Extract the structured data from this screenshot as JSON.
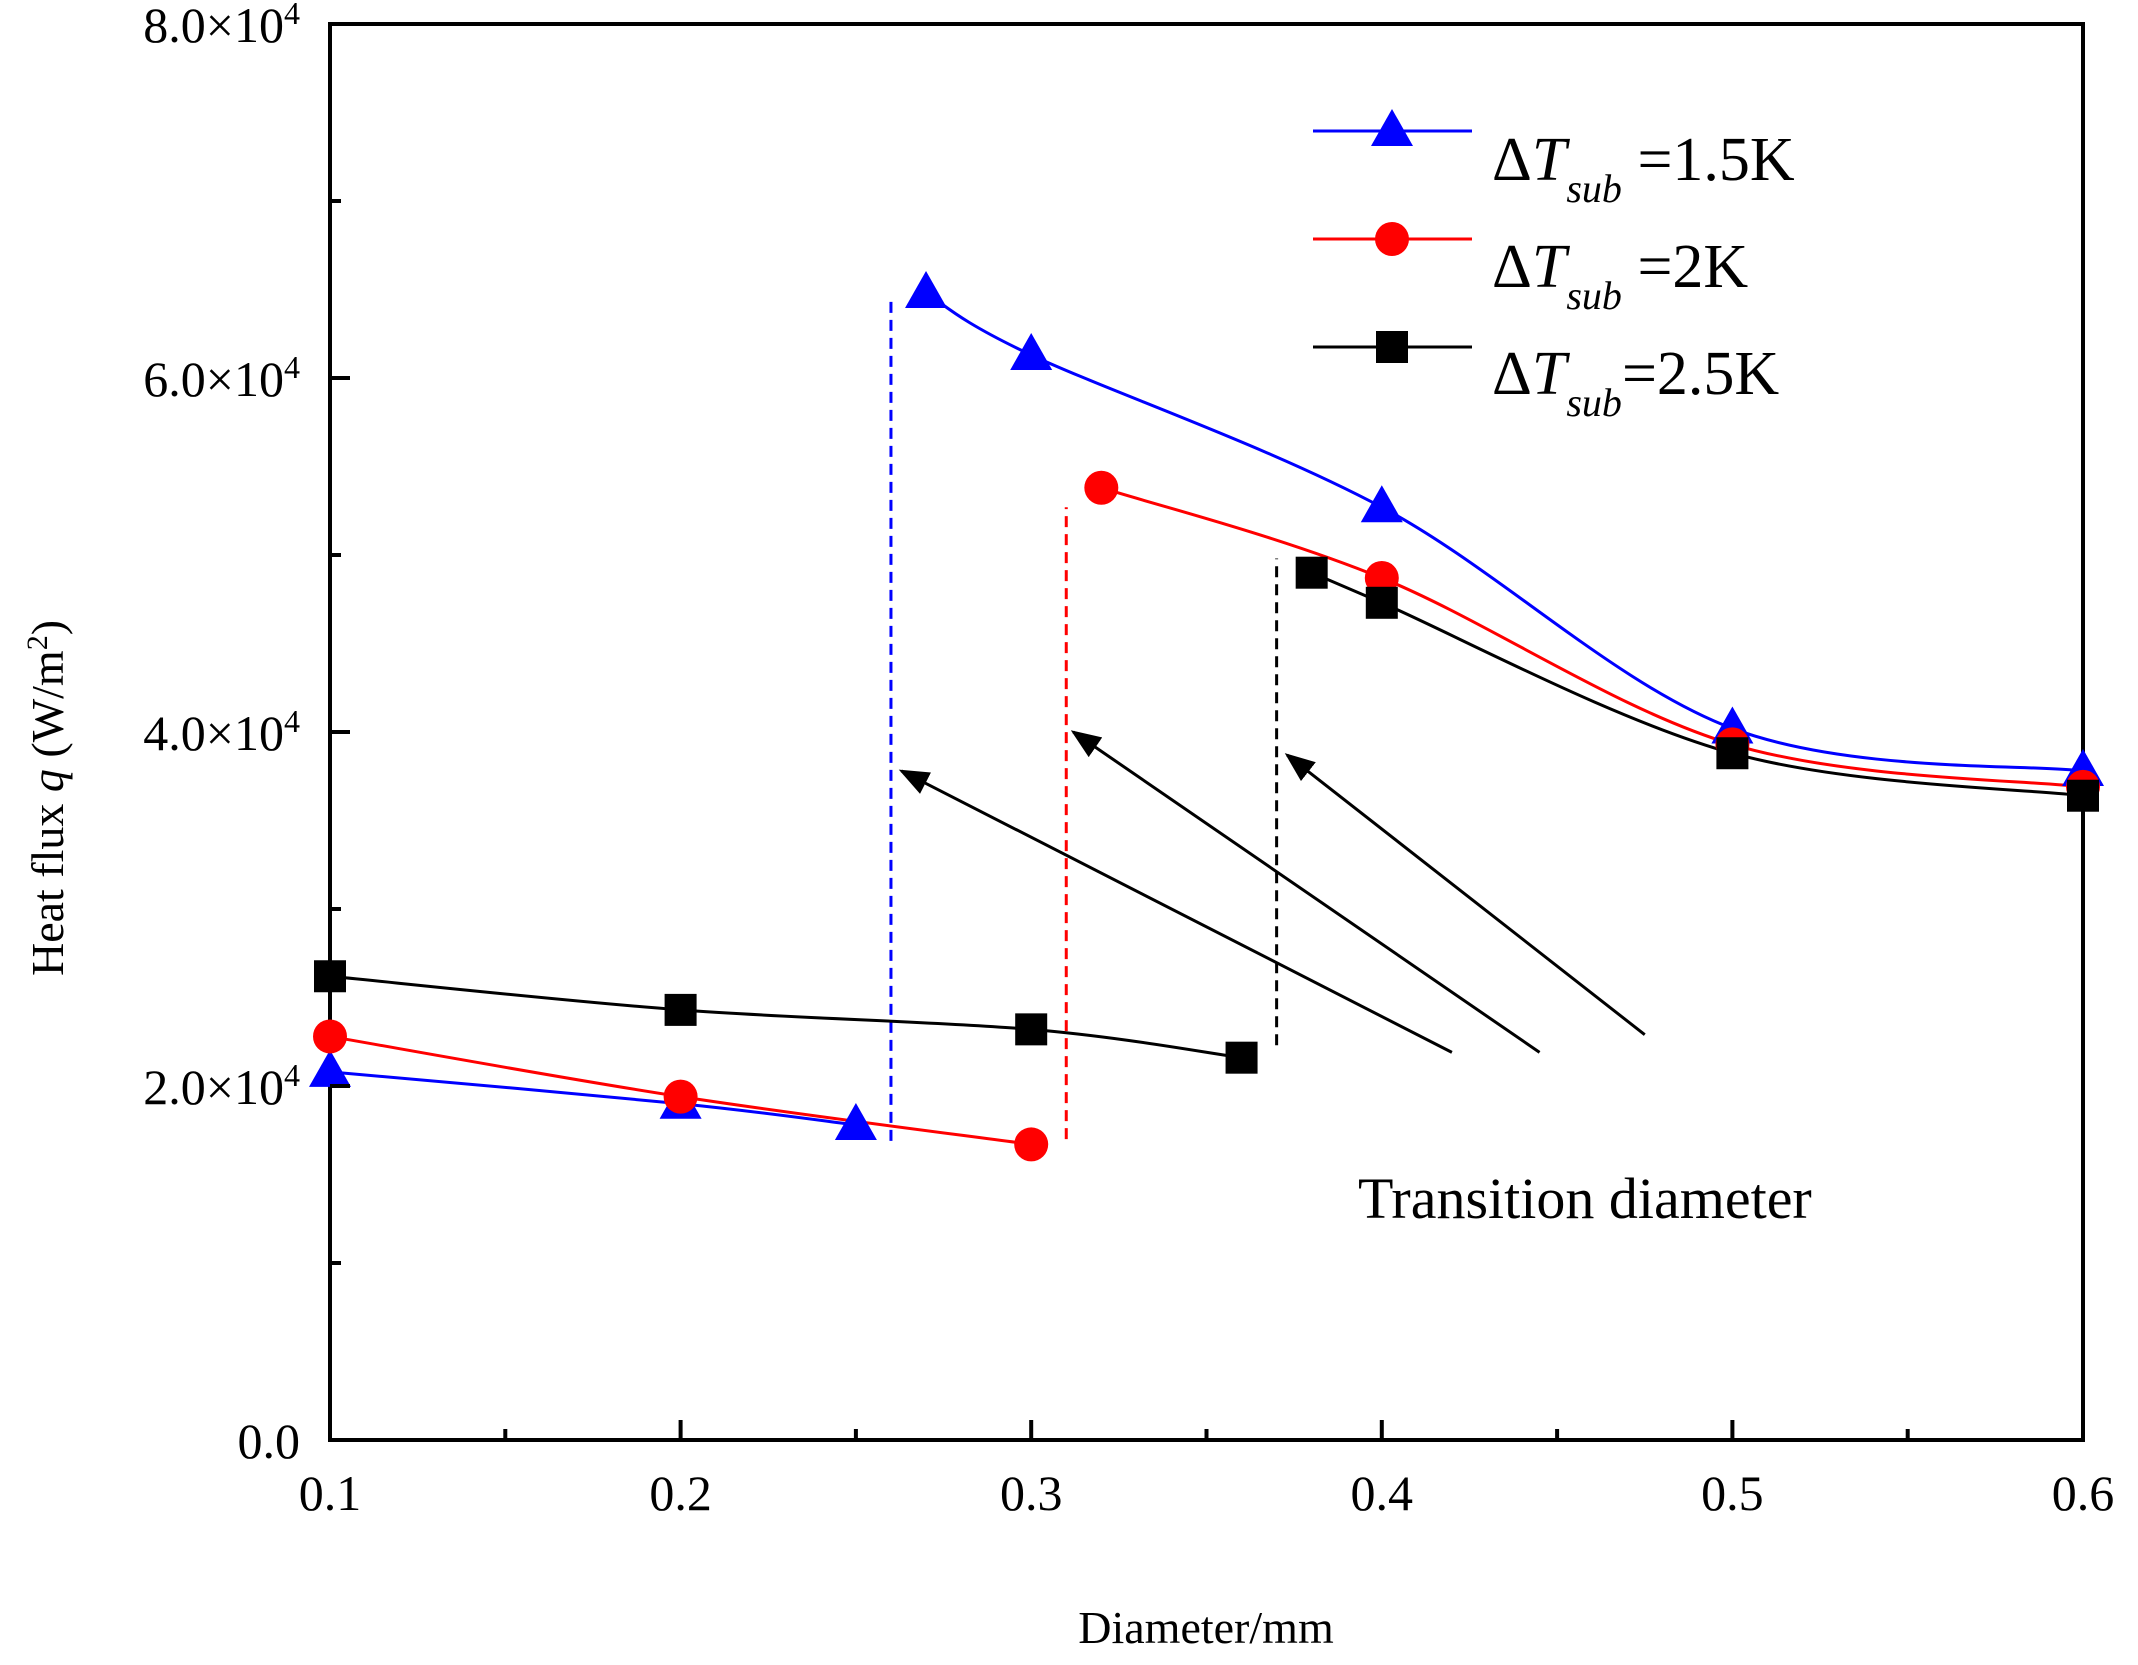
{
  "chart_data": {
    "type": "line",
    "title": "",
    "xlabel": "Diameter/mm",
    "ylabel": {
      "prefix": "Heat flux ",
      "var": "q",
      "unit_open": " (W/m",
      "unit_exp": "2",
      "unit_close": ")"
    },
    "xlim": [
      0.1,
      0.6
    ],
    "ylim": [
      0,
      80000
    ],
    "x_ticks": [
      {
        "value": 0.1,
        "label": "0.1"
      },
      {
        "value": 0.2,
        "label": "0.2"
      },
      {
        "value": 0.3,
        "label": "0.3"
      },
      {
        "value": 0.4,
        "label": "0.4"
      },
      {
        "value": 0.5,
        "label": "0.5"
      },
      {
        "value": 0.6,
        "label": "0.6"
      }
    ],
    "y_ticks": [
      {
        "value": 0,
        "mantissa": "0.0",
        "exp": ""
      },
      {
        "value": 20000,
        "mantissa": "2.0×10",
        "exp": "4"
      },
      {
        "value": 40000,
        "mantissa": "4.0×10",
        "exp": "4"
      },
      {
        "value": 60000,
        "mantissa": "6.0×10",
        "exp": "4"
      },
      {
        "value": 80000,
        "mantissa": "8.0×10",
        "exp": "4"
      }
    ],
    "series": [
      {
        "name": "ΔTsub =1.5K",
        "legend": {
          "delta_t": "ΔT",
          "sub": "sub",
          "value": " =1.5K"
        },
        "color": "#0000ff",
        "marker": "triangle",
        "segments": [
          [
            {
              "x": 0.1,
              "y": 20800
            },
            {
              "x": 0.2,
              "y": 19000
            },
            {
              "x": 0.25,
              "y": 17800
            }
          ],
          [
            {
              "x": 0.27,
              "y": 64800
            },
            {
              "x": 0.3,
              "y": 61300
            },
            {
              "x": 0.4,
              "y": 52700
            },
            {
              "x": 0.5,
              "y": 40200
            },
            {
              "x": 0.6,
              "y": 37800
            }
          ]
        ],
        "transition_x": 0.26,
        "transition_y": [
          16900,
          64400
        ]
      },
      {
        "name": "ΔTsub =2K",
        "legend": {
          "delta_t": "ΔT",
          "sub": "sub",
          "value": " =2K"
        },
        "color": "#ff0000",
        "marker": "circle",
        "segments": [
          [
            {
              "x": 0.1,
              "y": 22800
            },
            {
              "x": 0.2,
              "y": 19400
            },
            {
              "x": 0.3,
              "y": 16700
            }
          ],
          [
            {
              "x": 0.32,
              "y": 53800
            },
            {
              "x": 0.4,
              "y": 48700
            },
            {
              "x": 0.5,
              "y": 39300
            },
            {
              "x": 0.6,
              "y": 36900
            }
          ]
        ],
        "transition_x": 0.31,
        "transition_y": [
          17000,
          52700
        ]
      },
      {
        "name": "ΔTsub =2.5K",
        "legend": {
          "delta_t": "ΔT",
          "sub": "sub",
          "value": "=2.5K"
        },
        "color": "#000000",
        "marker": "square",
        "segments": [
          [
            {
              "x": 0.1,
              "y": 26200
            },
            {
              "x": 0.2,
              "y": 24300
            },
            {
              "x": 0.3,
              "y": 23200
            },
            {
              "x": 0.36,
              "y": 21600
            }
          ],
          [
            {
              "x": 0.38,
              "y": 49000
            },
            {
              "x": 0.4,
              "y": 47300
            },
            {
              "x": 0.5,
              "y": 38800
            },
            {
              "x": 0.6,
              "y": 36400
            }
          ]
        ],
        "transition_x": 0.37,
        "transition_y": [
          22300,
          49800
        ]
      }
    ],
    "annotation": {
      "text": "Transition diameter",
      "arrows": [
        {
          "from": [
            0.42,
            21900
          ],
          "to": [
            0.263,
            37800
          ]
        },
        {
          "from": [
            0.445,
            21900
          ],
          "to": [
            0.312,
            40000
          ]
        },
        {
          "from": [
            0.475,
            22900
          ],
          "to": [
            0.373,
            38700
          ]
        }
      ]
    },
    "legend_position": "top-right",
    "grid": false
  }
}
